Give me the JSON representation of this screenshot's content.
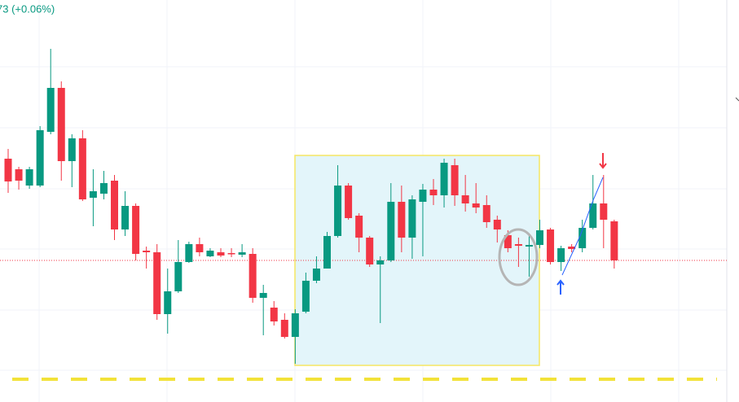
{
  "chart_data": {
    "type": "candlestick",
    "title": "73 (+0.06%)",
    "ylim": [
      0,
      494
    ],
    "up_color": "#089981",
    "down_color": "#f23645",
    "open": [
      299,
      286,
      266,
      266,
      332,
      386,
      296,
      324,
      251,
      256,
      272,
      212,
      241,
      186,
      184,
      108,
      136,
      172,
      194,
      179,
      184,
      183,
      181,
      182,
      128,
      116,
      101,
      80,
      111,
      149,
      164,
      204,
      266,
      229,
      202,
      169,
      174,
      246,
      202,
      246,
      261,
      254,
      291,
      254,
      244,
      242,
      224,
      205,
      194,
      191,
      193,
      212,
      172,
      191,
      189,
      214,
      244,
      222
    ],
    "high": [
      311,
      289,
      289,
      339,
      434,
      394,
      329,
      334,
      286,
      284,
      279,
      259,
      244,
      191,
      194,
      164,
      199,
      197,
      202,
      189,
      189,
      189,
      194,
      189,
      144,
      124,
      109,
      114,
      159,
      179,
      209,
      291,
      269,
      232,
      204,
      179,
      269,
      266,
      254,
      268,
      274,
      299,
      299,
      279,
      269,
      254,
      229,
      211,
      202,
      204,
      224,
      214,
      192,
      194,
      224,
      279,
      279,
      224
    ],
    "low": [
      257,
      261,
      262,
      264,
      329,
      272,
      264,
      247,
      216,
      249,
      199,
      204,
      174,
      164,
      101,
      84,
      134,
      171,
      179,
      178,
      178,
      178,
      178,
      122,
      82,
      94,
      78,
      47,
      109,
      146,
      164,
      202,
      224,
      184,
      166,
      97,
      172,
      184,
      176,
      179,
      242,
      239,
      241,
      234,
      232,
      214,
      196,
      184,
      166,
      154,
      189,
      169,
      161,
      184,
      184,
      212,
      189,
      164
    ],
    "close": [
      271,
      272,
      286,
      334,
      386,
      296,
      324,
      249,
      259,
      269,
      212,
      241,
      182,
      184,
      108,
      136,
      172,
      194,
      184,
      186,
      180,
      182,
      184,
      128,
      134,
      99,
      80,
      109,
      149,
      164,
      204,
      266,
      226,
      202,
      169,
      174,
      246,
      202,
      249,
      261,
      254,
      294,
      254,
      244,
      239,
      221,
      212,
      189,
      192,
      193,
      211,
      172,
      189,
      188,
      214,
      244,
      224,
      174
    ]
  }
}
